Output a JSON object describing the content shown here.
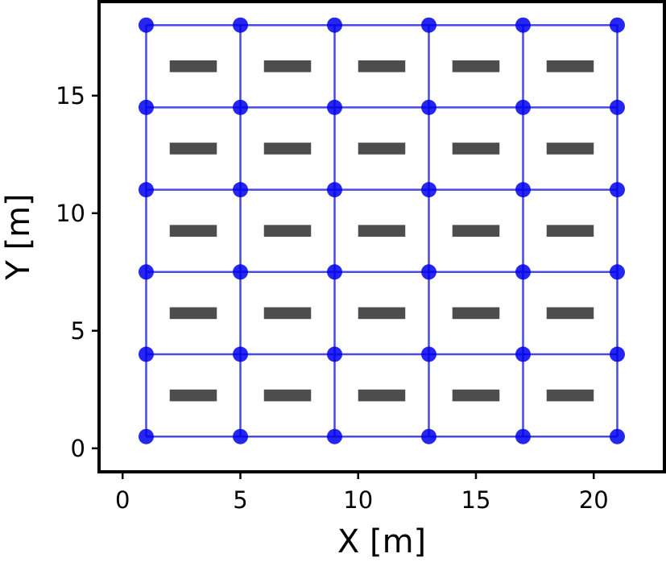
{
  "chart_data": {
    "type": "scatter",
    "title": "",
    "xlabel": "X [m]",
    "ylabel": "Y [m]",
    "xlim": [
      -1,
      23
    ],
    "ylim": [
      -1,
      19
    ],
    "xticks": [
      0,
      5,
      10,
      15,
      20
    ],
    "yticks": [
      0,
      5,
      10,
      15
    ],
    "grid": false,
    "node_color": "#0000ee",
    "edge_color": "#4a4ae6",
    "obstacle_color": "#4d4d4d",
    "nodes": {
      "x": [
        1,
        5,
        9,
        13,
        17,
        21
      ],
      "y": [
        0.5,
        4,
        7.5,
        11,
        14.5,
        18
      ]
    },
    "obstacles": {
      "x_ranges": [
        [
          2,
          4
        ],
        [
          6,
          8
        ],
        [
          10,
          12
        ],
        [
          14,
          16
        ],
        [
          18,
          20
        ]
      ],
      "y_centers": [
        2.25,
        5.75,
        9.25,
        12.75,
        16.25
      ],
      "height": 0.5
    }
  }
}
